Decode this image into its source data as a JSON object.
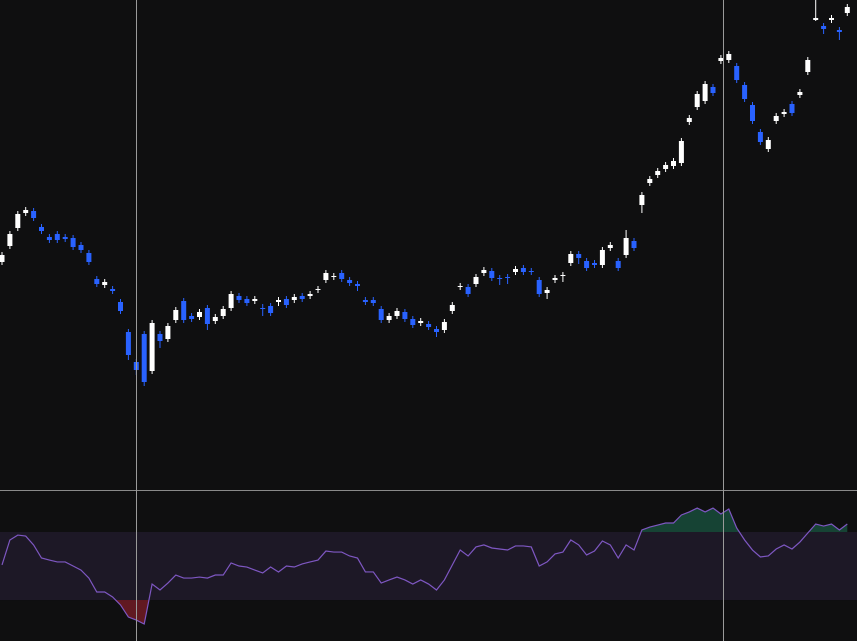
{
  "chart_data": [
    {
      "type": "candlestick",
      "up_color": "#ffffff",
      "down_color": "#2962ff",
      "ylim": [
        0,
        490
      ],
      "open": [
        228,
        244,
        262,
        277,
        279,
        263,
        253,
        256,
        253,
        252,
        245,
        237,
        211,
        205,
        201,
        188,
        158,
        128,
        156,
        119,
        156,
        151,
        170,
        189,
        174,
        173,
        182,
        169,
        174,
        182,
        194,
        191,
        189,
        182,
        184,
        188,
        191,
        190,
        194,
        194,
        200,
        210,
        213,
        217,
        210,
        206,
        190,
        190,
        181,
        170,
        174,
        178,
        171,
        167,
        166,
        161,
        160,
        179,
        203,
        203,
        206,
        217,
        219,
        212,
        213,
        218,
        222,
        219,
        210,
        197,
        210,
        214,
        227,
        236,
        229,
        227,
        225,
        242,
        229,
        235,
        249,
        285,
        307,
        315,
        321,
        324,
        327,
        368,
        383,
        389,
        403,
        429,
        430,
        424,
        405,
        385,
        358,
        341,
        369,
        376,
        386,
        395,
        418,
        470,
        464,
        470,
        460,
        477
      ],
      "high": [
        238,
        259,
        279,
        283,
        282,
        266,
        256,
        259,
        256,
        255,
        248,
        240,
        214,
        211,
        204,
        191,
        161,
        131,
        159,
        170,
        159,
        167,
        183,
        192,
        177,
        181,
        185,
        176,
        184,
        199,
        197,
        194,
        194,
        186,
        187,
        193,
        194,
        196,
        197,
        199,
        204,
        220,
        217,
        220,
        213,
        209,
        193,
        193,
        184,
        177,
        182,
        181,
        174,
        172,
        169,
        164,
        171,
        188,
        207,
        206,
        216,
        223,
        222,
        215,
        216,
        224,
        225,
        222,
        213,
        203,
        215,
        218,
        239,
        239,
        232,
        230,
        243,
        248,
        232,
        260,
        252,
        298,
        314,
        322,
        328,
        332,
        352,
        375,
        399,
        409,
        406,
        435,
        439,
        427,
        408,
        388,
        361,
        353,
        377,
        381,
        389,
        401,
        433,
        490,
        467,
        475,
        463,
        486
      ],
      "low": [
        225,
        241,
        259,
        274,
        269,
        256,
        247,
        247,
        248,
        240,
        237,
        225,
        203,
        202,
        196,
        176,
        130,
        115,
        104,
        116,
        142,
        148,
        167,
        167,
        168,
        170,
        160,
        166,
        171,
        179,
        187,
        184,
        186,
        174,
        174,
        184,
        182,
        187,
        188,
        191,
        197,
        207,
        210,
        208,
        204,
        199,
        185,
        184,
        167,
        167,
        171,
        168,
        162,
        164,
        160,
        153,
        157,
        176,
        200,
        193,
        203,
        214,
        209,
        205,
        206,
        215,
        215,
        215,
        193,
        191,
        207,
        208,
        224,
        226,
        219,
        222,
        222,
        239,
        219,
        232,
        239,
        277,
        304,
        312,
        318,
        321,
        324,
        365,
        380,
        386,
        394,
        426,
        427,
        407,
        388,
        366,
        345,
        338,
        366,
        373,
        374,
        392,
        415,
        469,
        456,
        467,
        450,
        474
      ],
      "close": [
        235,
        256,
        276,
        280,
        272,
        259,
        250,
        250,
        251,
        243,
        240,
        228,
        206,
        208,
        199,
        179,
        135,
        120,
        108,
        167,
        149,
        164,
        180,
        170,
        171,
        178,
        166,
        173,
        181,
        196,
        190,
        187,
        191,
        181,
        177,
        190,
        185,
        193,
        191,
        196,
        201,
        217,
        214,
        211,
        207,
        204,
        188,
        187,
        170,
        174,
        179,
        171,
        165,
        169,
        163,
        158,
        168,
        185,
        204,
        196,
        213,
        220,
        212,
        211,
        212,
        221,
        218,
        218,
        196,
        200,
        212,
        215,
        236,
        232,
        222,
        225,
        240,
        245,
        222,
        252,
        242,
        295,
        311,
        319,
        325,
        329,
        349,
        372,
        396,
        406,
        397,
        432,
        436,
        410,
        391,
        369,
        348,
        350,
        374,
        378,
        377,
        398,
        430,
        472,
        461,
        472,
        458,
        483
      ]
    },
    {
      "type": "line",
      "color": "#7e57c2",
      "ylim": [
        5.9,
        94.7
      ],
      "bands": [
        30,
        70
      ],
      "values": [
        50.6,
        65.3,
        68.2,
        67.6,
        62.4,
        54.7,
        53.5,
        52.4,
        52.4,
        50,
        47.6,
        42.9,
        34.7,
        34.7,
        31.8,
        27.1,
        20,
        18.2,
        15.9,
        39.4,
        35.9,
        40,
        44.7,
        42.9,
        42.9,
        43.5,
        42.9,
        44.7,
        44.7,
        51.8,
        50,
        49.4,
        47.6,
        45.9,
        49.4,
        46.5,
        50,
        49.4,
        51.2,
        52.4,
        53.5,
        58.8,
        58.2,
        58.2,
        55.9,
        54.7,
        46.5,
        46.5,
        40,
        41.8,
        43.5,
        41.8,
        39.4,
        41.8,
        39.4,
        35.9,
        41.8,
        50.6,
        59.4,
        55.9,
        61.2,
        62.4,
        60.6,
        60,
        59.4,
        61.8,
        61.8,
        61.2,
        50,
        52.4,
        57.1,
        58.2,
        65.3,
        62.4,
        56.5,
        58.8,
        64.7,
        62.4,
        54.7,
        62.4,
        59.4,
        71.2,
        72.9,
        74.1,
        75.3,
        75.3,
        80,
        81.8,
        84.1,
        81.8,
        84.1,
        80.6,
        83.5,
        72.4,
        65.3,
        59.4,
        55.3,
        55.9,
        60,
        62.4,
        60,
        64.1,
        69.4,
        74.7,
        73.5,
        74.7,
        71.2,
        74.7
      ]
    }
  ]
}
